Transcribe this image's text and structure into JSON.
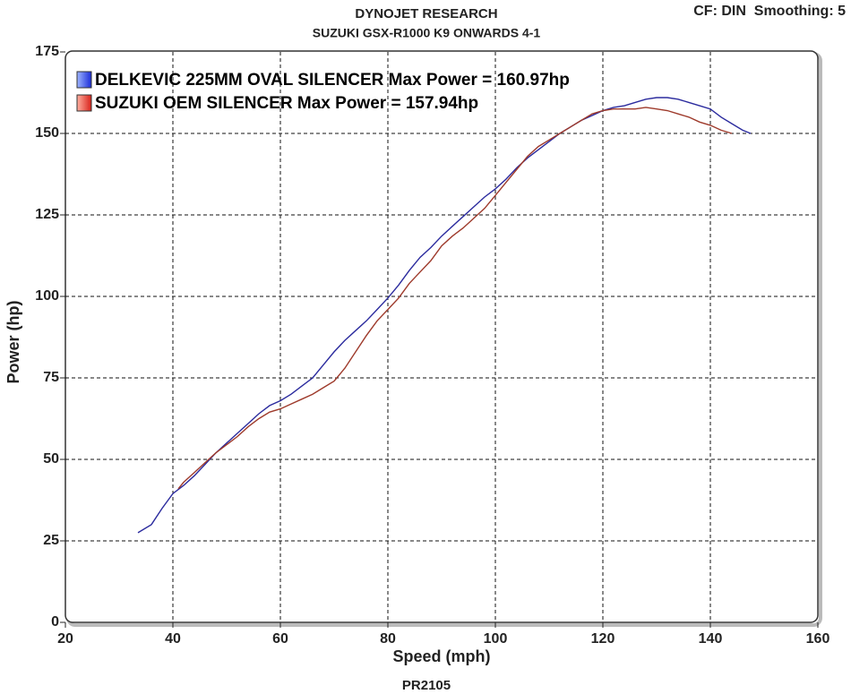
{
  "chart_data": {
    "type": "line",
    "title": "DYNOJET RESEARCH",
    "subtitle": "SUZUKI GSX-R1000 K9 ONWARDS 4-1",
    "header_right": "CF: DIN  Smoothing: 5",
    "footer": "PR2105",
    "xlabel": "Speed (mph)",
    "ylabel": "Power (hp)",
    "xlim": [
      20,
      160
    ],
    "ylim": [
      0,
      175
    ],
    "xticks": [
      20,
      40,
      60,
      80,
      100,
      120,
      140,
      160
    ],
    "yticks": [
      0,
      25,
      50,
      75,
      100,
      125,
      150,
      175
    ],
    "grid": true,
    "legend": "top-left",
    "series": [
      {
        "name": "DELKEVIC 225MM OVAL SILENCER Max Power = 160.97hp",
        "color": "#2b2b9e",
        "x": [
          33.5,
          36,
          38,
          40,
          42,
          44,
          46,
          48,
          50,
          52,
          54,
          56,
          58,
          60,
          62,
          64,
          66,
          68,
          70,
          72,
          74,
          76,
          78,
          80,
          82,
          84,
          86,
          88,
          90,
          92,
          94,
          96,
          98,
          100,
          102,
          104,
          106,
          108,
          110,
          112,
          114,
          116,
          118,
          120,
          122,
          124,
          126,
          128,
          130,
          132,
          134,
          136,
          138,
          140,
          142,
          144,
          146,
          147.5
        ],
        "values": [
          27.5,
          30,
          35,
          39.5,
          42,
          45,
          48.5,
          52,
          55,
          58,
          61,
          64,
          66.5,
          68,
          70,
          72.5,
          75,
          79,
          83,
          86.5,
          89.5,
          92.5,
          96,
          99.5,
          103.5,
          108,
          112,
          115,
          118.5,
          121.5,
          124.5,
          127.5,
          130.5,
          133,
          136,
          139.5,
          142.5,
          145,
          147.5,
          150,
          152,
          154,
          155.5,
          157,
          158,
          158.5,
          159.5,
          160.5,
          161,
          161,
          160.5,
          159.5,
          158.5,
          157.5,
          155,
          153,
          151,
          150
        ]
      },
      {
        "name": "SUZUKI OEM SILENCER Max Power = 157.94hp",
        "color": "#9e3a2b",
        "x": [
          41,
          42,
          44,
          46,
          48,
          50,
          52,
          54,
          56,
          58,
          60,
          62,
          64,
          66,
          68,
          70,
          72,
          74,
          76,
          78,
          80,
          82,
          84,
          86,
          88,
          90,
          92,
          94,
          96,
          98,
          100,
          102,
          104,
          106,
          108,
          110,
          112,
          114,
          116,
          118,
          120,
          122,
          124,
          126,
          128,
          130,
          132,
          134,
          136,
          138,
          140,
          142,
          144
        ],
        "values": [
          41,
          43,
          46,
          49,
          52,
          54.5,
          57,
          60,
          62.5,
          64.5,
          65.5,
          67,
          68.5,
          70,
          72,
          74,
          78,
          83,
          88,
          92.5,
          96,
          99.5,
          104,
          107.5,
          111,
          115.5,
          118.5,
          121,
          124,
          127,
          131,
          135,
          139,
          143,
          146,
          148,
          150,
          152,
          154,
          156,
          157,
          157.5,
          157.5,
          157.5,
          158,
          157.5,
          157,
          156,
          155,
          153.5,
          152.5,
          151,
          150
        ]
      }
    ]
  }
}
